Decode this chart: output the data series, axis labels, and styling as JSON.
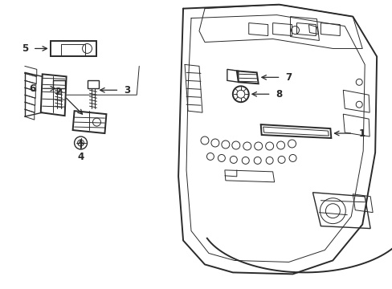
{
  "bg_color": "#ffffff",
  "line_color": "#2a2a2a",
  "label_color": "#000000",
  "lw_main": 1.4,
  "lw_thin": 0.7,
  "lw_med": 1.0,
  "figsize": [
    4.89,
    3.6
  ],
  "dpi": 100
}
